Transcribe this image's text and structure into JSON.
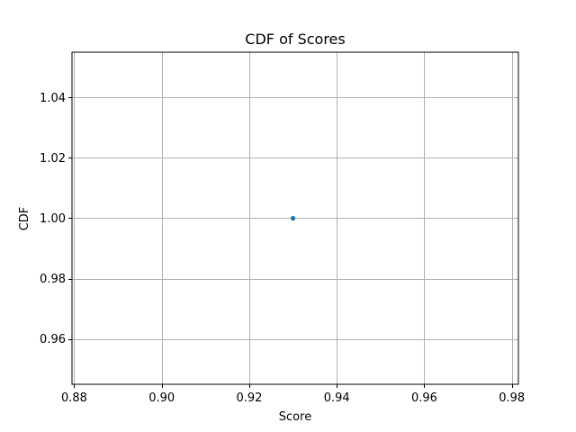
{
  "chart_data": {
    "type": "scatter",
    "title": "CDF of Scores",
    "xlabel": "Score",
    "ylabel": "CDF",
    "xlim": [
      0.8795,
      0.9815
    ],
    "ylim": [
      0.945,
      1.055
    ],
    "xticks": [
      0.88,
      0.9,
      0.92,
      0.94,
      0.96,
      0.98
    ],
    "xtick_labels": [
      "0.88",
      "0.90",
      "0.92",
      "0.94",
      "0.96",
      "0.98"
    ],
    "yticks": [
      0.96,
      0.98,
      1.0,
      1.02,
      1.04
    ],
    "ytick_labels": [
      "0.96",
      "0.98",
      "1.00",
      "1.02",
      "1.04"
    ],
    "grid": true,
    "series": [
      {
        "color": "#1f77b4",
        "points": [
          {
            "x": 0.93,
            "y": 1.0
          }
        ]
      }
    ]
  }
}
